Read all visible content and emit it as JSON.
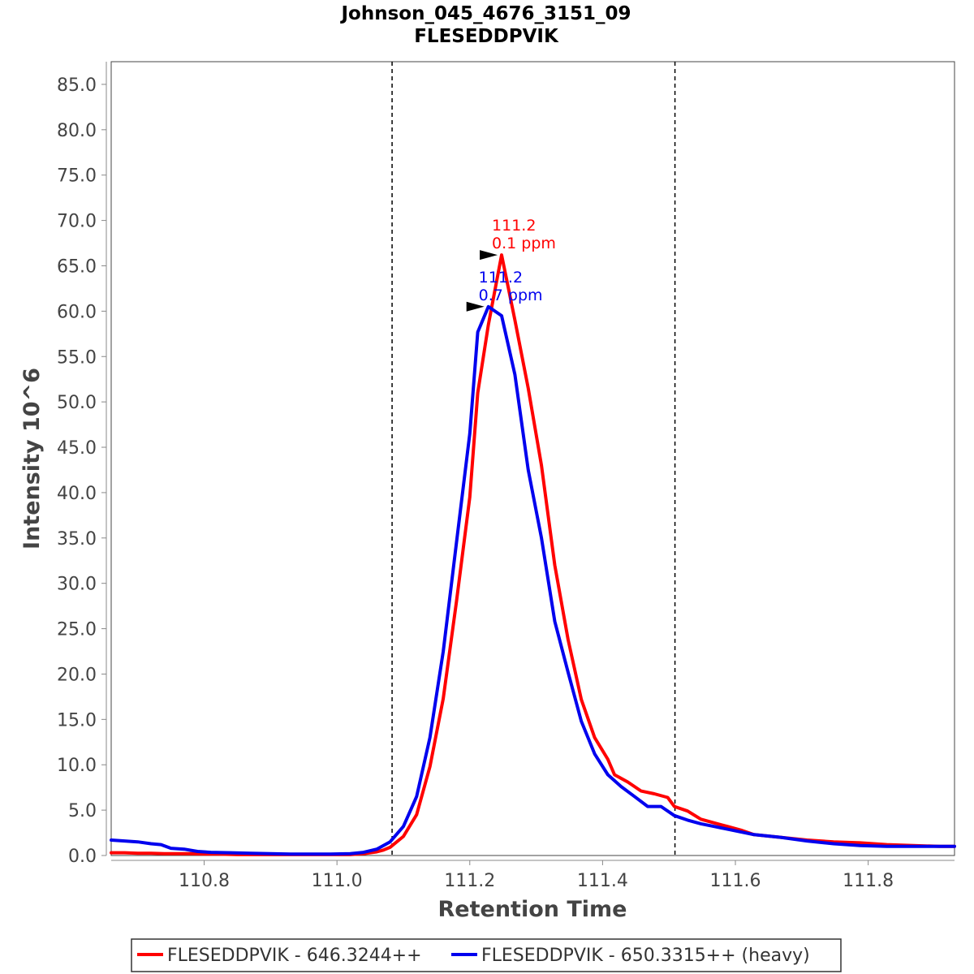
{
  "chart_data": {
    "type": "line",
    "title": "Johnson_045_4676_3151_09",
    "subtitle": "FLESEDDPVIK",
    "xlabel": "Retention Time",
    "ylabel": "Intensity 10^6",
    "xlim": [
      110.66,
      111.93
    ],
    "ylim": [
      0,
      87.5
    ],
    "x_ticks": [
      110.8,
      111.0,
      111.2,
      111.4,
      111.6,
      111.8
    ],
    "x_tick_labels": [
      "110.8",
      "111.0",
      "111.2",
      "111.4",
      "111.6",
      "111.8"
    ],
    "y_ticks": [
      0,
      5,
      10,
      15,
      20,
      25,
      30,
      35,
      40,
      45,
      50,
      55,
      60,
      65,
      70,
      75,
      80,
      85
    ],
    "y_tick_labels": [
      "0.0",
      "5.0",
      "10.0",
      "15.0",
      "20.0",
      "25.0",
      "30.0",
      "35.0",
      "40.0",
      "45.0",
      "50.0",
      "55.0",
      "60.0",
      "65.0",
      "70.0",
      "75.0",
      "80.0",
      "85.0"
    ],
    "grid": false,
    "boundaries": [
      111.083,
      111.509
    ],
    "legend_position": "bottom",
    "series": [
      {
        "name": "FLESEDDPVIK - 646.3244++",
        "color": "#ff0000",
        "x": [
          110.66,
          110.68,
          110.7,
          110.72,
          110.74,
          110.76,
          110.78,
          110.8,
          110.82,
          110.85,
          110.88,
          110.91,
          110.94,
          110.97,
          111.0,
          111.02,
          111.04,
          111.06,
          111.07,
          111.08,
          111.1,
          111.12,
          111.14,
          111.16,
          111.18,
          111.2,
          111.212,
          111.228,
          111.248,
          111.268,
          111.288,
          111.308,
          111.328,
          111.348,
          111.368,
          111.388,
          111.408,
          111.418,
          111.438,
          111.458,
          111.478,
          111.498,
          111.508,
          111.528,
          111.548,
          111.568,
          111.588,
          111.608,
          111.628,
          111.668,
          111.708,
          111.748,
          111.788,
          111.828,
          111.868,
          111.908,
          111.93
        ],
        "values": [
          0.3,
          0.3,
          0.25,
          0.25,
          0.2,
          0.2,
          0.2,
          0.15,
          0.15,
          0.1,
          0.1,
          0.1,
          0.1,
          0.1,
          0.1,
          0.1,
          0.2,
          0.4,
          0.6,
          0.9,
          2.1,
          4.5,
          9.8,
          17.3,
          28.0,
          39.5,
          51.0,
          58.5,
          66.2,
          59.0,
          51.5,
          43.0,
          32.0,
          23.8,
          17.2,
          13.0,
          10.6,
          8.9,
          8.1,
          7.1,
          6.8,
          6.4,
          5.4,
          4.9,
          4.0,
          3.6,
          3.2,
          2.8,
          2.3,
          2.0,
          1.7,
          1.5,
          1.4,
          1.2,
          1.1,
          1.0,
          1.0
        ]
      },
      {
        "name": "FLESEDDPVIK - 650.3315++ (heavy)",
        "color": "#0000ee",
        "x": [
          110.66,
          110.68,
          110.7,
          110.72,
          110.735,
          110.75,
          110.77,
          110.79,
          110.81,
          110.84,
          110.87,
          110.9,
          110.93,
          110.96,
          110.99,
          111.02,
          111.04,
          111.06,
          111.08,
          111.1,
          111.12,
          111.14,
          111.16,
          111.18,
          111.2,
          111.212,
          111.228,
          111.248,
          111.268,
          111.288,
          111.308,
          111.328,
          111.348,
          111.368,
          111.388,
          111.408,
          111.428,
          111.448,
          111.468,
          111.488,
          111.508,
          111.528,
          111.548,
          111.568,
          111.588,
          111.608,
          111.628,
          111.668,
          111.708,
          111.748,
          111.788,
          111.828,
          111.868,
          111.908,
          111.93
        ],
        "values": [
          1.7,
          1.6,
          1.5,
          1.3,
          1.2,
          0.8,
          0.7,
          0.45,
          0.35,
          0.3,
          0.25,
          0.2,
          0.15,
          0.15,
          0.15,
          0.2,
          0.35,
          0.7,
          1.5,
          3.2,
          6.5,
          13.0,
          22.5,
          34.5,
          46.5,
          57.7,
          60.5,
          59.5,
          53.0,
          42.5,
          35.0,
          25.8,
          20.2,
          14.8,
          11.2,
          8.9,
          7.6,
          6.5,
          5.4,
          5.4,
          4.4,
          3.9,
          3.5,
          3.2,
          2.9,
          2.6,
          2.3,
          2.0,
          1.6,
          1.3,
          1.1,
          1.0,
          1.0,
          1.0,
          1.0
        ]
      }
    ],
    "annotations": [
      {
        "series": 0,
        "x": 111.248,
        "y": 66.2,
        "lines": [
          "111.2",
          "0.1 ppm"
        ]
      },
      {
        "series": 1,
        "x": 111.228,
        "y": 60.5,
        "lines": [
          "111.2",
          "0.7 ppm"
        ]
      }
    ]
  }
}
